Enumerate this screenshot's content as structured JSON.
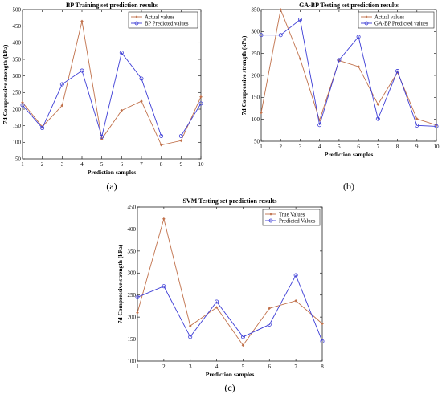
{
  "colors": {
    "actual": "#c0704a",
    "predicted": "#3d3dd6",
    "axis": "#222222"
  },
  "chart_data": [
    {
      "id": "a",
      "type": "line",
      "panel_label": "(a)",
      "title": "BP Training set prediction results",
      "xlabel": "Prediction samples",
      "ylabel": "7d Compressive strength (kPa)",
      "xlim": [
        1,
        10
      ],
      "ylim": [
        50,
        500
      ],
      "xticks": [
        1,
        2,
        3,
        4,
        5,
        6,
        7,
        8,
        9,
        10
      ],
      "yticks": [
        50,
        100,
        150,
        200,
        250,
        300,
        350,
        400,
        450,
        500
      ],
      "legend_position": "top-right",
      "x": [
        1,
        2,
        3,
        4,
        5,
        6,
        7,
        8,
        9,
        10
      ],
      "series": [
        {
          "name": "Actual values",
          "style": "actual",
          "values": [
            220,
            147,
            211,
            465,
            110,
            196,
            224,
            92,
            105,
            237
          ]
        },
        {
          "name": "BP Predicted values",
          "style": "predicted",
          "values": [
            212,
            143,
            275,
            316,
            117,
            370,
            292,
            119,
            119,
            217
          ]
        }
      ]
    },
    {
      "id": "b",
      "type": "line",
      "panel_label": "(b)",
      "title": "GA-BP Testing set prediction results",
      "xlabel": "Prediction samples",
      "ylabel": "7d Compressive strength (kPa)",
      "xlim": [
        1,
        10
      ],
      "ylim": [
        50,
        350
      ],
      "xticks": [
        1,
        2,
        3,
        4,
        5,
        6,
        7,
        8,
        9,
        10
      ],
      "yticks": [
        50,
        100,
        150,
        200,
        250,
        300,
        350
      ],
      "legend_position": "top-right",
      "x": [
        1,
        2,
        3,
        4,
        5,
        6,
        7,
        8,
        9,
        10
      ],
      "series": [
        {
          "name": "Actual values",
          "style": "actual",
          "values": [
            115,
            350,
            238,
            98,
            234,
            220,
            134,
            207,
            101,
            87
          ]
        },
        {
          "name": "GA-BP Predicted values",
          "style": "predicted",
          "values": [
            292,
            292,
            327,
            87,
            235,
            288,
            101,
            210,
            86,
            84
          ]
        }
      ]
    },
    {
      "id": "c",
      "type": "line",
      "panel_label": "(c)",
      "title": "SVM Testing set prediction results",
      "xlabel": "Prediction samples",
      "ylabel": "7d Compressive strength (kPa)",
      "xlim": [
        1,
        8
      ],
      "ylim": [
        100,
        450
      ],
      "xticks": [
        1,
        2,
        3,
        4,
        5,
        6,
        7,
        8
      ],
      "yticks": [
        100,
        150,
        200,
        250,
        300,
        350,
        400,
        450
      ],
      "legend_position": "top-right",
      "x": [
        1,
        2,
        3,
        4,
        5,
        6,
        7,
        8
      ],
      "series": [
        {
          "name": "True Values",
          "style": "actual",
          "values": [
            210,
            423,
            180,
            222,
            136,
            220,
            237,
            185
          ]
        },
        {
          "name": "Predicted Values",
          "style": "predicted",
          "values": [
            245,
            270,
            155,
            235,
            155,
            183,
            295,
            145
          ]
        }
      ]
    }
  ]
}
